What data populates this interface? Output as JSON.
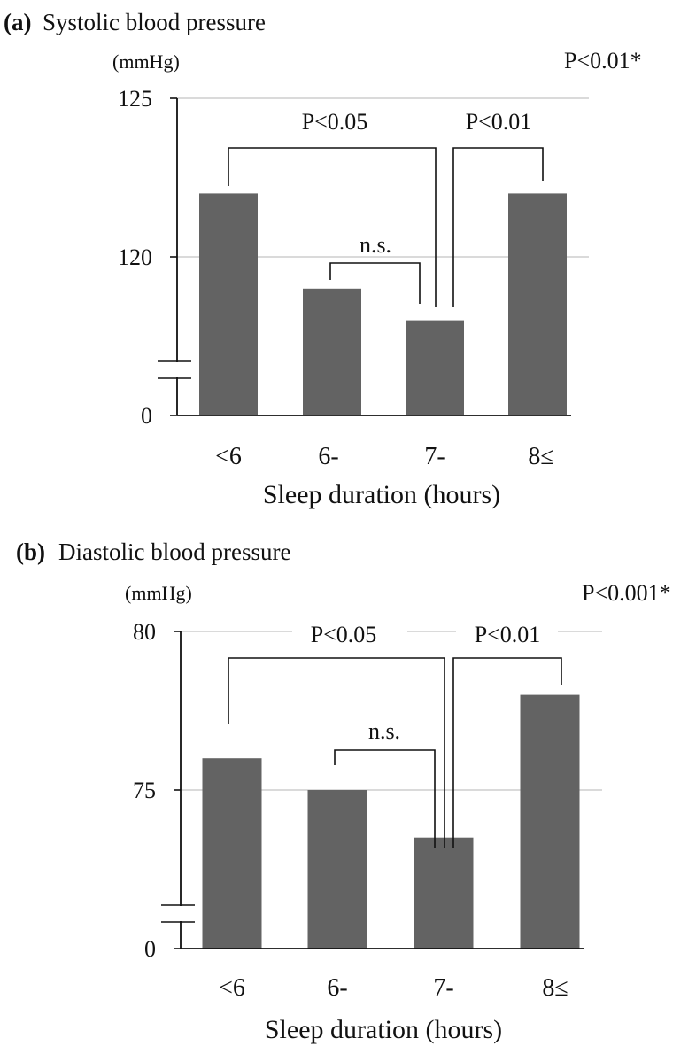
{
  "chart_data": [
    {
      "type": "bar",
      "panel_letter": "(a)",
      "title": "Systolic blood pressure",
      "unit": "(mmHg)",
      "overall_p": "P<0.01*",
      "xlabel": "Sleep duration (hours)",
      "categories": [
        "<6",
        "6-",
        "7-",
        "8≤"
      ],
      "values": [
        122.0,
        119.0,
        118.0,
        122.0
      ],
      "yticks": [
        {
          "label": "0",
          "value": 0
        },
        {
          "label": "120",
          "value": 120
        },
        {
          "label": "125",
          "value": 125
        }
      ],
      "axis_break": true,
      "ylim": [
        115,
        125
      ],
      "grid": "horizontal at labeled ticks",
      "bar_color": "#636363",
      "comparisons": [
        {
          "from": 0,
          "to": 2,
          "label": "P<0.05"
        },
        {
          "from": 2,
          "to": 3,
          "label": "P<0.01"
        },
        {
          "from": 1,
          "to": 2,
          "label": "n.s."
        }
      ]
    },
    {
      "type": "bar",
      "panel_letter": "(b)",
      "title": "Diastolic blood pressure",
      "unit": "(mmHg)",
      "overall_p": "P<0.001*",
      "xlabel": "Sleep duration (hours)",
      "categories": [
        "<6",
        "6-",
        "7-",
        "8≤"
      ],
      "values": [
        76.0,
        75.0,
        73.5,
        78.0
      ],
      "yticks": [
        {
          "label": "0",
          "value": 0
        },
        {
          "label": "75",
          "value": 75
        },
        {
          "label": "80",
          "value": 80
        }
      ],
      "axis_break": true,
      "ylim": [
        70,
        80
      ],
      "grid": "horizontal at labeled ticks",
      "bar_color": "#636363",
      "comparisons": [
        {
          "from": 0,
          "to": 2,
          "label": "P<0.05"
        },
        {
          "from": 2,
          "to": 3,
          "label": "P<0.01"
        },
        {
          "from": 1,
          "to": 2,
          "label": "n.s."
        }
      ]
    }
  ]
}
